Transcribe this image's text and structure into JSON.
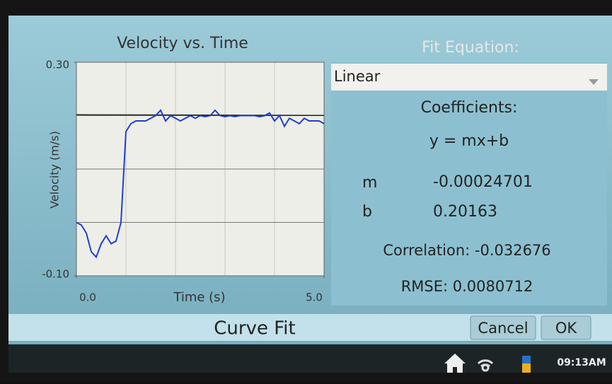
{
  "chart_data": {
    "type": "line",
    "title": "Velocity vs. Time",
    "y_label": "Velocity (m/s)",
    "x_label": "Time (s)",
    "x": [
      0.0,
      0.1,
      0.2,
      0.3,
      0.4,
      0.5,
      0.6,
      0.7,
      0.8,
      0.9,
      1.0,
      1.1,
      1.2,
      1.3,
      1.4,
      1.5,
      1.6,
      1.7,
      1.8,
      1.9,
      2.0,
      2.1,
      2.2,
      2.3,
      2.4,
      2.5,
      2.6,
      2.7,
      2.8,
      2.9,
      3.0,
      3.1,
      3.2,
      3.3,
      3.4,
      3.5,
      3.6,
      3.7,
      3.8,
      3.9,
      4.0,
      4.1,
      4.2,
      4.3,
      4.4,
      4.5,
      4.6,
      4.7,
      4.8,
      4.9,
      5.0
    ],
    "values": [
      0.0,
      -0.005,
      -0.02,
      -0.055,
      -0.065,
      -0.04,
      -0.025,
      -0.04,
      -0.035,
      0.0,
      0.17,
      0.185,
      0.19,
      0.19,
      0.19,
      0.195,
      0.2,
      0.21,
      0.19,
      0.2,
      0.195,
      0.19,
      0.195,
      0.2,
      0.195,
      0.2,
      0.198,
      0.2,
      0.21,
      0.2,
      0.198,
      0.2,
      0.198,
      0.2,
      0.2,
      0.2,
      0.2,
      0.198,
      0.2,
      0.205,
      0.19,
      0.2,
      0.18,
      0.195,
      0.19,
      0.185,
      0.195,
      0.19,
      0.19,
      0.19,
      0.185
    ],
    "color": "#1f3fd0",
    "xlim": [
      0,
      5
    ],
    "ylim": [
      -0.1,
      0.3
    ],
    "xticks": [
      {
        "value": 0,
        "label": "0.0"
      },
      {
        "value": 5,
        "label": "5.0"
      }
    ],
    "yticks": [
      {
        "value": 0.3,
        "label": "0.30"
      },
      {
        "value": -0.1,
        "label": "-0.10"
      }
    ],
    "xgrid": [
      1,
      2,
      3,
      4
    ],
    "ygrid": [
      0,
      0.1,
      0.2
    ],
    "grid": true
  },
  "panel": {
    "heading": "Fit Equation:",
    "dropdown": "Linear",
    "coefficients": "Coefficients:",
    "equation": "y = mx+b",
    "m_label": "m",
    "m": -0.00024701,
    "b_label": "b",
    "b": 0.20163,
    "correlation": "Correlation: -0.032676",
    "rmse": "RMSE: 0.0080712"
  },
  "footer": {
    "title": "Curve Fit",
    "cancel": "Cancel",
    "ok": "OK"
  },
  "status": {
    "time": "09:13AM"
  }
}
